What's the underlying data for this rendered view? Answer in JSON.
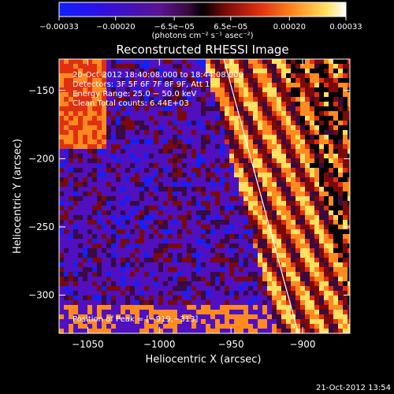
{
  "chart_data": {
    "type": "heatmap",
    "title": "Reconstructed RHESSI Image",
    "xlabel": "Heliocentric X (arcsec)",
    "ylabel": "Heliocentric Y (arcsec)",
    "xlim": [
      -1070,
      -867
    ],
    "ylim": [
      -328,
      -127
    ],
    "x_ticks": [
      -1050,
      -1000,
      -950,
      -900
    ],
    "x_tick_labels": [
      "−1050",
      "−1000",
      "−950",
      "−900"
    ],
    "y_ticks": [
      -150,
      -200,
      -250,
      -300
    ],
    "y_tick_labels": [
      "−150",
      "−200",
      "−250",
      "−300"
    ],
    "grid": false,
    "colorbar": {
      "range": [
        -0.00033,
        0.00033
      ],
      "ticks": [
        -0.00033,
        -0.0002,
        -6.5e-05,
        6.5e-05,
        0.0002,
        0.00033
      ],
      "tick_labels": [
        "−0.00033",
        "−0.00020",
        "−6.5e−05",
        "6.5e−05",
        "0.00020",
        "0.00033"
      ],
      "units_label": "(photons cm⁻² s⁻¹ asec⁻²)",
      "colors": [
        "#1020ff",
        "#5010c0",
        "#3a0a40",
        "#000000",
        "#7a0a0a",
        "#e03010",
        "#ff8a20",
        "#ffe060",
        "#ffffff"
      ]
    },
    "annotations": [
      "20-Oct-2012 18:40:08.000  to 18:44:08.000",
      "Detectors: 3F 5F 6F 7F 8F 9F, Att 1",
      "Energy Range: 25.0 − 50.0 keV",
      "Clean     Total counts: 6.44E+03"
    ],
    "peak_label": "Position of Peak = [−919,−313]",
    "limb_line": {
      "x": [
        -955,
        -903
      ],
      "y": [
        -127,
        -328
      ]
    }
  },
  "footer_timestamp": "21-Oct-2012 13:54"
}
